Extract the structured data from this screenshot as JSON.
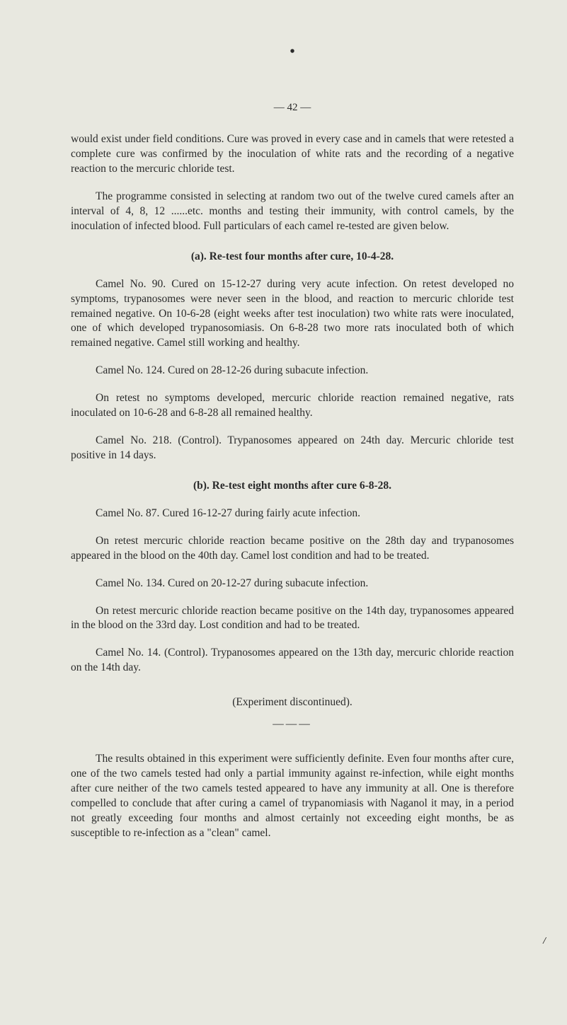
{
  "page": {
    "dot": "•",
    "pageNumber": "— 42 —",
    "paragraphs": {
      "p1": "would exist under field conditions. Cure was proved in every case and in camels that were retested a complete cure was confirmed by the in­oculation of white rats and the recording of a negative reaction to the mercuric chloride test.",
      "p2": "The programme consisted in selecting at random two out of the twelve cured camels after an interval of 4, 8, 12 ......etc. months and test­ing their immunity, with control camels, by the inoculation of infected blood. Full particulars of each camel re-tested are given below.",
      "headingA": "(a).   Re-test four months after cure, 10-4-28.",
      "p3": "Camel No. 90.  Cured on 15-12-27 during very acute infection. On retest developed no symptoms, trypanosomes were never seen in the blood, and reaction to mercuric chloride test remained negative. On 10-6-28 (eight weeks after test inoculation) two white rats were inoculated, one of which developed trypanosomiasis. On 6-8-28 two more rats in­oculated both of which remained negative. Camel still working and healthy.",
      "p4": "Camel No. 124.  Cured on 28-12-26 during subacute infection.",
      "p5": "On retest no symptoms developed, mercuric chloride reaction re­mained negative, rats inoculated on 10-6-28 and 6-8-28 all remained healthy.",
      "p6": "Camel No. 218.  (Control). Trypanosomes appeared on 24th day. Mercuric chloride test positive in 14 days.",
      "headingB": "(b).   Re-test eight months after cure 6-8-28.",
      "p7": "Camel No. 87.  Cured 16-12-27 during fairly acute infection.",
      "p8": "On retest mercuric chloride reaction became positive on the 28th day and trypanosomes appeared in the blood on the 40th day. Camel lost condition and had to be treated.",
      "p9": "Camel No. 134.  Cured on 20-12-27 during subacute infection.",
      "p10": "On retest mercuric chloride reaction became positive on the 14th day, trypanosomes appeared in the blood on the 33rd day. Lost condition and had to be treated.",
      "p11": "Camel No. 14. (Control). Trypanosomes appeared on the 13th day, mercuric chloride reaction on the 14th day.",
      "experiment": "(Experiment discontinued).",
      "divider": "———",
      "p12": "The results obtained in this experiment were sufficiently definite. Even four months after cure, one of the two camels tested had only a partial immunity against re-infection, while eight months after cure neither of the two camels tested appeared to have any immunity at all. One is therefore compelled to conclude that after curing a camel of trypano­miasis with Naganol it may, in a period not greatly exceeding four months and almost certainly not exceeding eight months, be as susceptible to re-infection as a \"clean\" camel."
    },
    "sideMark": "/"
  },
  "colors": {
    "background": "#e8e8e0",
    "text": "#2a2a2a"
  },
  "typography": {
    "bodyFontSize": 15.5,
    "lineHeight": 1.35,
    "fontFamily": "Georgia, Times New Roman, serif"
  }
}
